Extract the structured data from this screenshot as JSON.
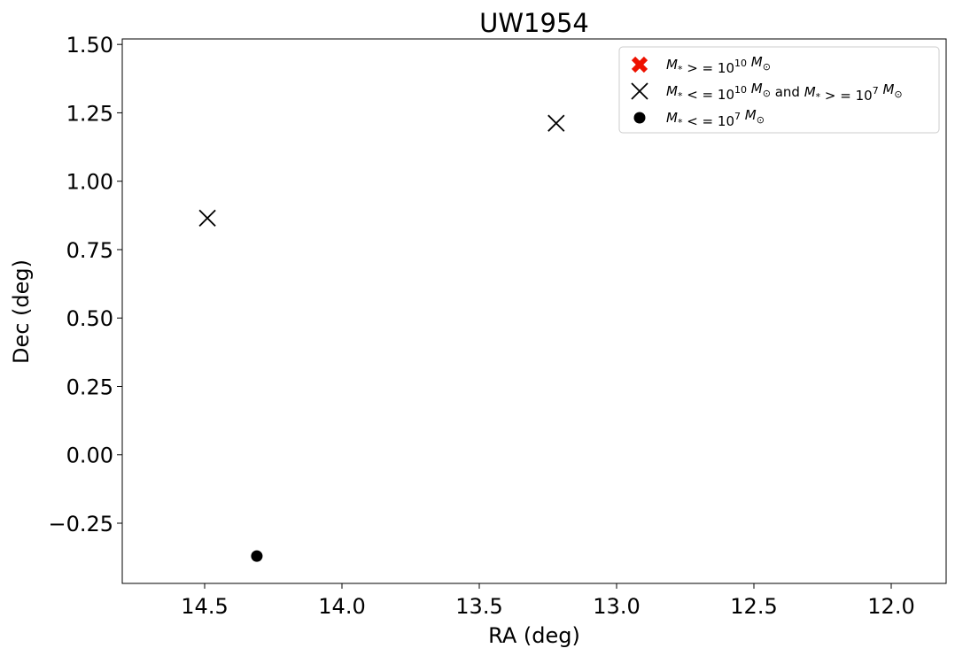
{
  "chart_data": {
    "type": "scatter",
    "title": "UW1954",
    "xlabel": "RA (deg)",
    "ylabel": "Dec (deg)",
    "xlim": [
      14.8,
      11.8
    ],
    "ylim": [
      -0.47,
      1.52
    ],
    "x_inverted": true,
    "x_ticks": [
      14.5,
      14.0,
      13.5,
      13.0,
      12.5,
      12.0
    ],
    "x_tick_labels": [
      "14.5",
      "14.0",
      "13.5",
      "13.0",
      "12.5",
      "12.0"
    ],
    "y_ticks": [
      -0.25,
      0.0,
      0.25,
      0.5,
      0.75,
      1.0,
      1.25,
      1.5
    ],
    "y_tick_labels": [
      "−0.25",
      "0.00",
      "0.25",
      "0.50",
      "0.75",
      "1.00",
      "1.25",
      "1.50"
    ],
    "grid": false,
    "legend_position": "top-right",
    "series": [
      {
        "name": "M* >= 10^10 M⊙",
        "marker": "filled-x",
        "color": "#ee1100",
        "points": []
      },
      {
        "name": "M* <= 10^10 M⊙ and M* >= 10^7 M⊙",
        "marker": "x",
        "color": "#000000",
        "points": [
          {
            "x": 14.49,
            "y": 0.865
          },
          {
            "x": 13.22,
            "y": 1.212
          }
        ]
      },
      {
        "name": "M* <= 10^7 M⊙",
        "marker": "circle",
        "color": "#000000",
        "points": [
          {
            "x": 14.31,
            "y": -0.37
          }
        ]
      }
    ],
    "legend": {
      "items": [
        {
          "parts": [
            [
              "it",
              "M"
            ],
            [
              "sub",
              "*"
            ],
            [
              "",
              " > = 10"
            ],
            [
              "sup",
              "10"
            ],
            [
              "",
              " "
            ],
            [
              "it",
              "M"
            ],
            [
              "sub",
              "⊙"
            ]
          ]
        },
        {
          "parts": [
            [
              "it",
              "M"
            ],
            [
              "sub",
              "*"
            ],
            [
              "",
              " < = 10"
            ],
            [
              "sup",
              "10"
            ],
            [
              "",
              " "
            ],
            [
              "it",
              "M"
            ],
            [
              "sub",
              "⊙"
            ],
            [
              "",
              " and "
            ],
            [
              "it",
              "M"
            ],
            [
              "sub",
              "*"
            ],
            [
              "",
              " > = 10"
            ],
            [
              "sup",
              "7"
            ],
            [
              "",
              " "
            ],
            [
              "it",
              "M"
            ],
            [
              "sub",
              "⊙"
            ]
          ]
        },
        {
          "parts": [
            [
              "it",
              "M"
            ],
            [
              "sub",
              "*"
            ],
            [
              "",
              " < = 10"
            ],
            [
              "sup",
              "7"
            ],
            [
              "",
              " "
            ],
            [
              "it",
              "M"
            ],
            [
              "sub",
              "⊙"
            ]
          ]
        }
      ]
    }
  }
}
